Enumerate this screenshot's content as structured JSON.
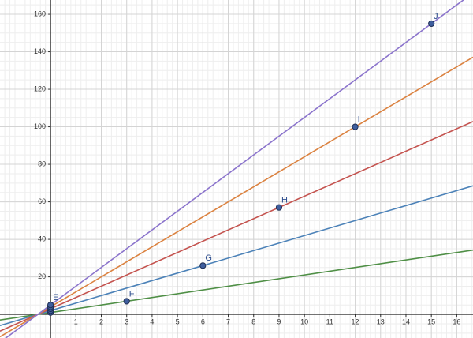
{
  "chart_data": {
    "type": "line",
    "xlim": [
      -1.99,
      16.64
    ],
    "ylim": [
      -12.6,
      167.6
    ],
    "xticks": [
      1,
      2,
      3,
      4,
      5,
      6,
      7,
      8,
      9,
      10,
      11,
      12,
      13,
      14,
      15,
      16
    ],
    "yticks": [
      20,
      40,
      60,
      80,
      100,
      120,
      140,
      160
    ],
    "grid": true,
    "series": [
      {
        "name": "F",
        "color": "#4f8f46",
        "x": [
          0,
          3
        ],
        "values": [
          1,
          7
        ],
        "point_labels": [
          null,
          "F"
        ]
      },
      {
        "name": "G",
        "color": "#4c82b8",
        "x": [
          0,
          6
        ],
        "values": [
          2,
          26
        ],
        "point_labels": [
          null,
          "G"
        ]
      },
      {
        "name": "H",
        "color": "#c4534f",
        "x": [
          0,
          9
        ],
        "values": [
          3,
          57
        ],
        "point_labels": [
          null,
          "H"
        ]
      },
      {
        "name": "I",
        "color": "#db8240",
        "x": [
          0,
          12
        ],
        "values": [
          4,
          100
        ],
        "point_labels": [
          null,
          "I"
        ]
      },
      {
        "name": "J",
        "color": "#8b74cc",
        "x": [
          0,
          15
        ],
        "values": [
          5,
          155
        ],
        "point_labels": [
          "E",
          "J"
        ]
      }
    ]
  }
}
